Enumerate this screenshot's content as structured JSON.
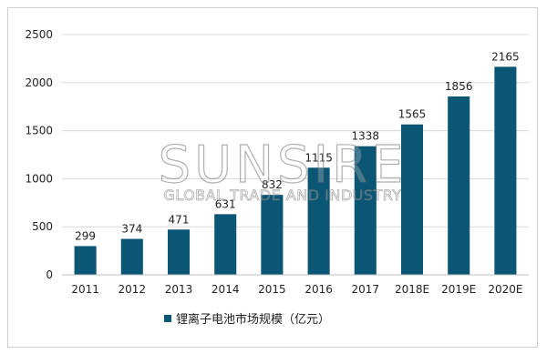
{
  "chart_data": {
    "type": "bar",
    "categories": [
      "2011",
      "2012",
      "2013",
      "2014",
      "2015",
      "2016",
      "2017",
      "2018E",
      "2019E",
      "2020E"
    ],
    "series": [
      {
        "name": "锂离子电池市场规模（亿元）",
        "values": [
          299,
          374,
          471,
          631,
          832,
          1115,
          1338,
          1565,
          1856,
          2165
        ]
      }
    ],
    "data_labels": [
      "299",
      "374",
      "471",
      "631",
      "832",
      "1115",
      "1338",
      "1565",
      "1856",
      "2165"
    ],
    "ylim": [
      0,
      2500
    ],
    "yticks": [
      0,
      500,
      1000,
      1500,
      2000,
      2500
    ],
    "grid": "horizontal",
    "legend_position": "bottom-center",
    "bar_color": "#0b5575"
  },
  "watermark": {
    "brand": "SUNSIRE",
    "tagline": "GLOBAL TRADE AND INDUSTRY"
  }
}
